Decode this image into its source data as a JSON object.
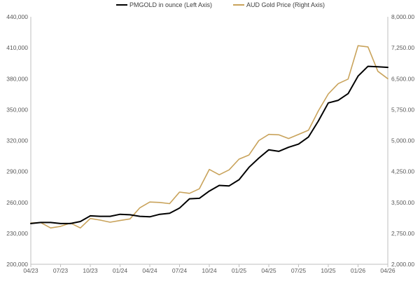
{
  "chart_data": {
    "type": "line",
    "legend_position": "top-center",
    "grid": false,
    "x_tick_labels": [
      "04/23",
      "07/23",
      "10/23",
      "01/24",
      "04/24",
      "07/24",
      "10/24",
      "01/25",
      "04/25",
      "07/25",
      "10/25",
      "01/26",
      "04/26"
    ],
    "y_left": {
      "range": [
        200000,
        440000
      ],
      "ticks": [
        "200,000",
        "230,000",
        "260,000",
        "290,000",
        "320,000",
        "350,000",
        "380,000",
        "410,000",
        "440,000"
      ]
    },
    "y_right": {
      "range": [
        2000,
        8000
      ],
      "ticks": [
        "2,000.00",
        "2,750.00",
        "3,500.00",
        "4,250.00",
        "5,000.00",
        "5,750.00",
        "6,500.00",
        "7,250.00",
        "8,000.00"
      ]
    },
    "series": [
      {
        "name": "PMGOLD in ounce (Left Axis)",
        "axis": "left",
        "color": "#000000",
        "x": [
          0,
          0.333,
          0.667,
          1,
          1.333,
          1.667,
          2,
          2.333,
          2.667,
          3,
          3.333,
          3.667,
          4,
          4.333,
          4.667,
          5,
          5.333,
          5.667,
          6,
          6.333,
          6.667,
          7,
          7.333,
          7.667,
          8,
          8.333,
          8.667,
          9,
          9.333,
          9.667,
          10,
          10.333,
          10.667,
          11,
          11.333,
          11.667,
          12
        ],
        "values": [
          239500,
          240500,
          240500,
          239500,
          239500,
          241500,
          247000,
          246500,
          246500,
          248500,
          248000,
          246500,
          246000,
          248500,
          249500,
          254500,
          263500,
          264000,
          271000,
          276500,
          276000,
          282000,
          294000,
          303000,
          311000,
          309500,
          313500,
          316500,
          323500,
          339000,
          356500,
          359000,
          365500,
          382500,
          392000,
          391500,
          391000
        ]
      },
      {
        "name": "AUD Gold Price (Right Axis)",
        "axis": "right",
        "color": "#c9a35b",
        "x": [
          0,
          0.333,
          0.667,
          1,
          1.333,
          1.667,
          2,
          2.333,
          2.667,
          3,
          3.333,
          3.667,
          4,
          4.333,
          4.667,
          5,
          5.333,
          5.667,
          6,
          6.333,
          6.667,
          7,
          7.333,
          7.667,
          8,
          8.333,
          8.667,
          9,
          9.333,
          9.667,
          10,
          10.333,
          10.667,
          11,
          11.333,
          11.667,
          12
        ],
        "values": [
          3000,
          3010,
          2880,
          2920,
          3000,
          2880,
          3110,
          3070,
          3020,
          3060,
          3100,
          3370,
          3510,
          3500,
          3470,
          3750,
          3720,
          3830,
          4300,
          4170,
          4290,
          4550,
          4650,
          5000,
          5150,
          5140,
          5050,
          5150,
          5250,
          5720,
          6130,
          6380,
          6490,
          7300,
          7270,
          6680,
          6500
        ]
      }
    ]
  }
}
